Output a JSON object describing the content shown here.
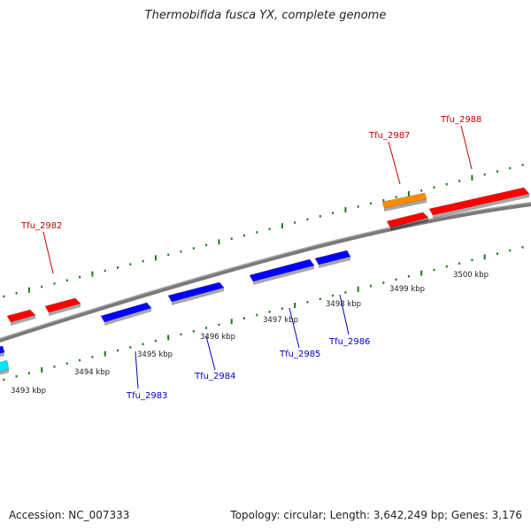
{
  "header": {
    "title": "Thermobifida fusca YX, complete genome"
  },
  "footer": {
    "accession": "Accession: NC_007333",
    "info": "Topology: circular; Length: 3,642,249 bp; Genes: 3,176"
  },
  "colors": {
    "forward_gene": "#ff0000",
    "reverse_gene": "#0000ff",
    "highlight_gene": "#ff8c00",
    "cyan_gene": "#00e5ff",
    "backbone": "#7a7a7a",
    "tick": "#1a7a1a",
    "forward_label": "#cc0000",
    "reverse_label": "#0000cc",
    "kbp_label": "#222222"
  },
  "scale": {
    "labels": [
      "3493 kbp",
      "3494 kbp",
      "3495 kbp",
      "3496 kbp",
      "3497 kbp",
      "3498 kbp",
      "3499 kbp",
      "3500 kbp"
    ]
  },
  "genes": {
    "forward_labels": [
      "Tfu_2982",
      "Tfu_2987",
      "Tfu_2988"
    ],
    "reverse_labels": [
      "Tfu_2983",
      "Tfu_2984",
      "Tfu_2985",
      "Tfu_2986"
    ]
  }
}
